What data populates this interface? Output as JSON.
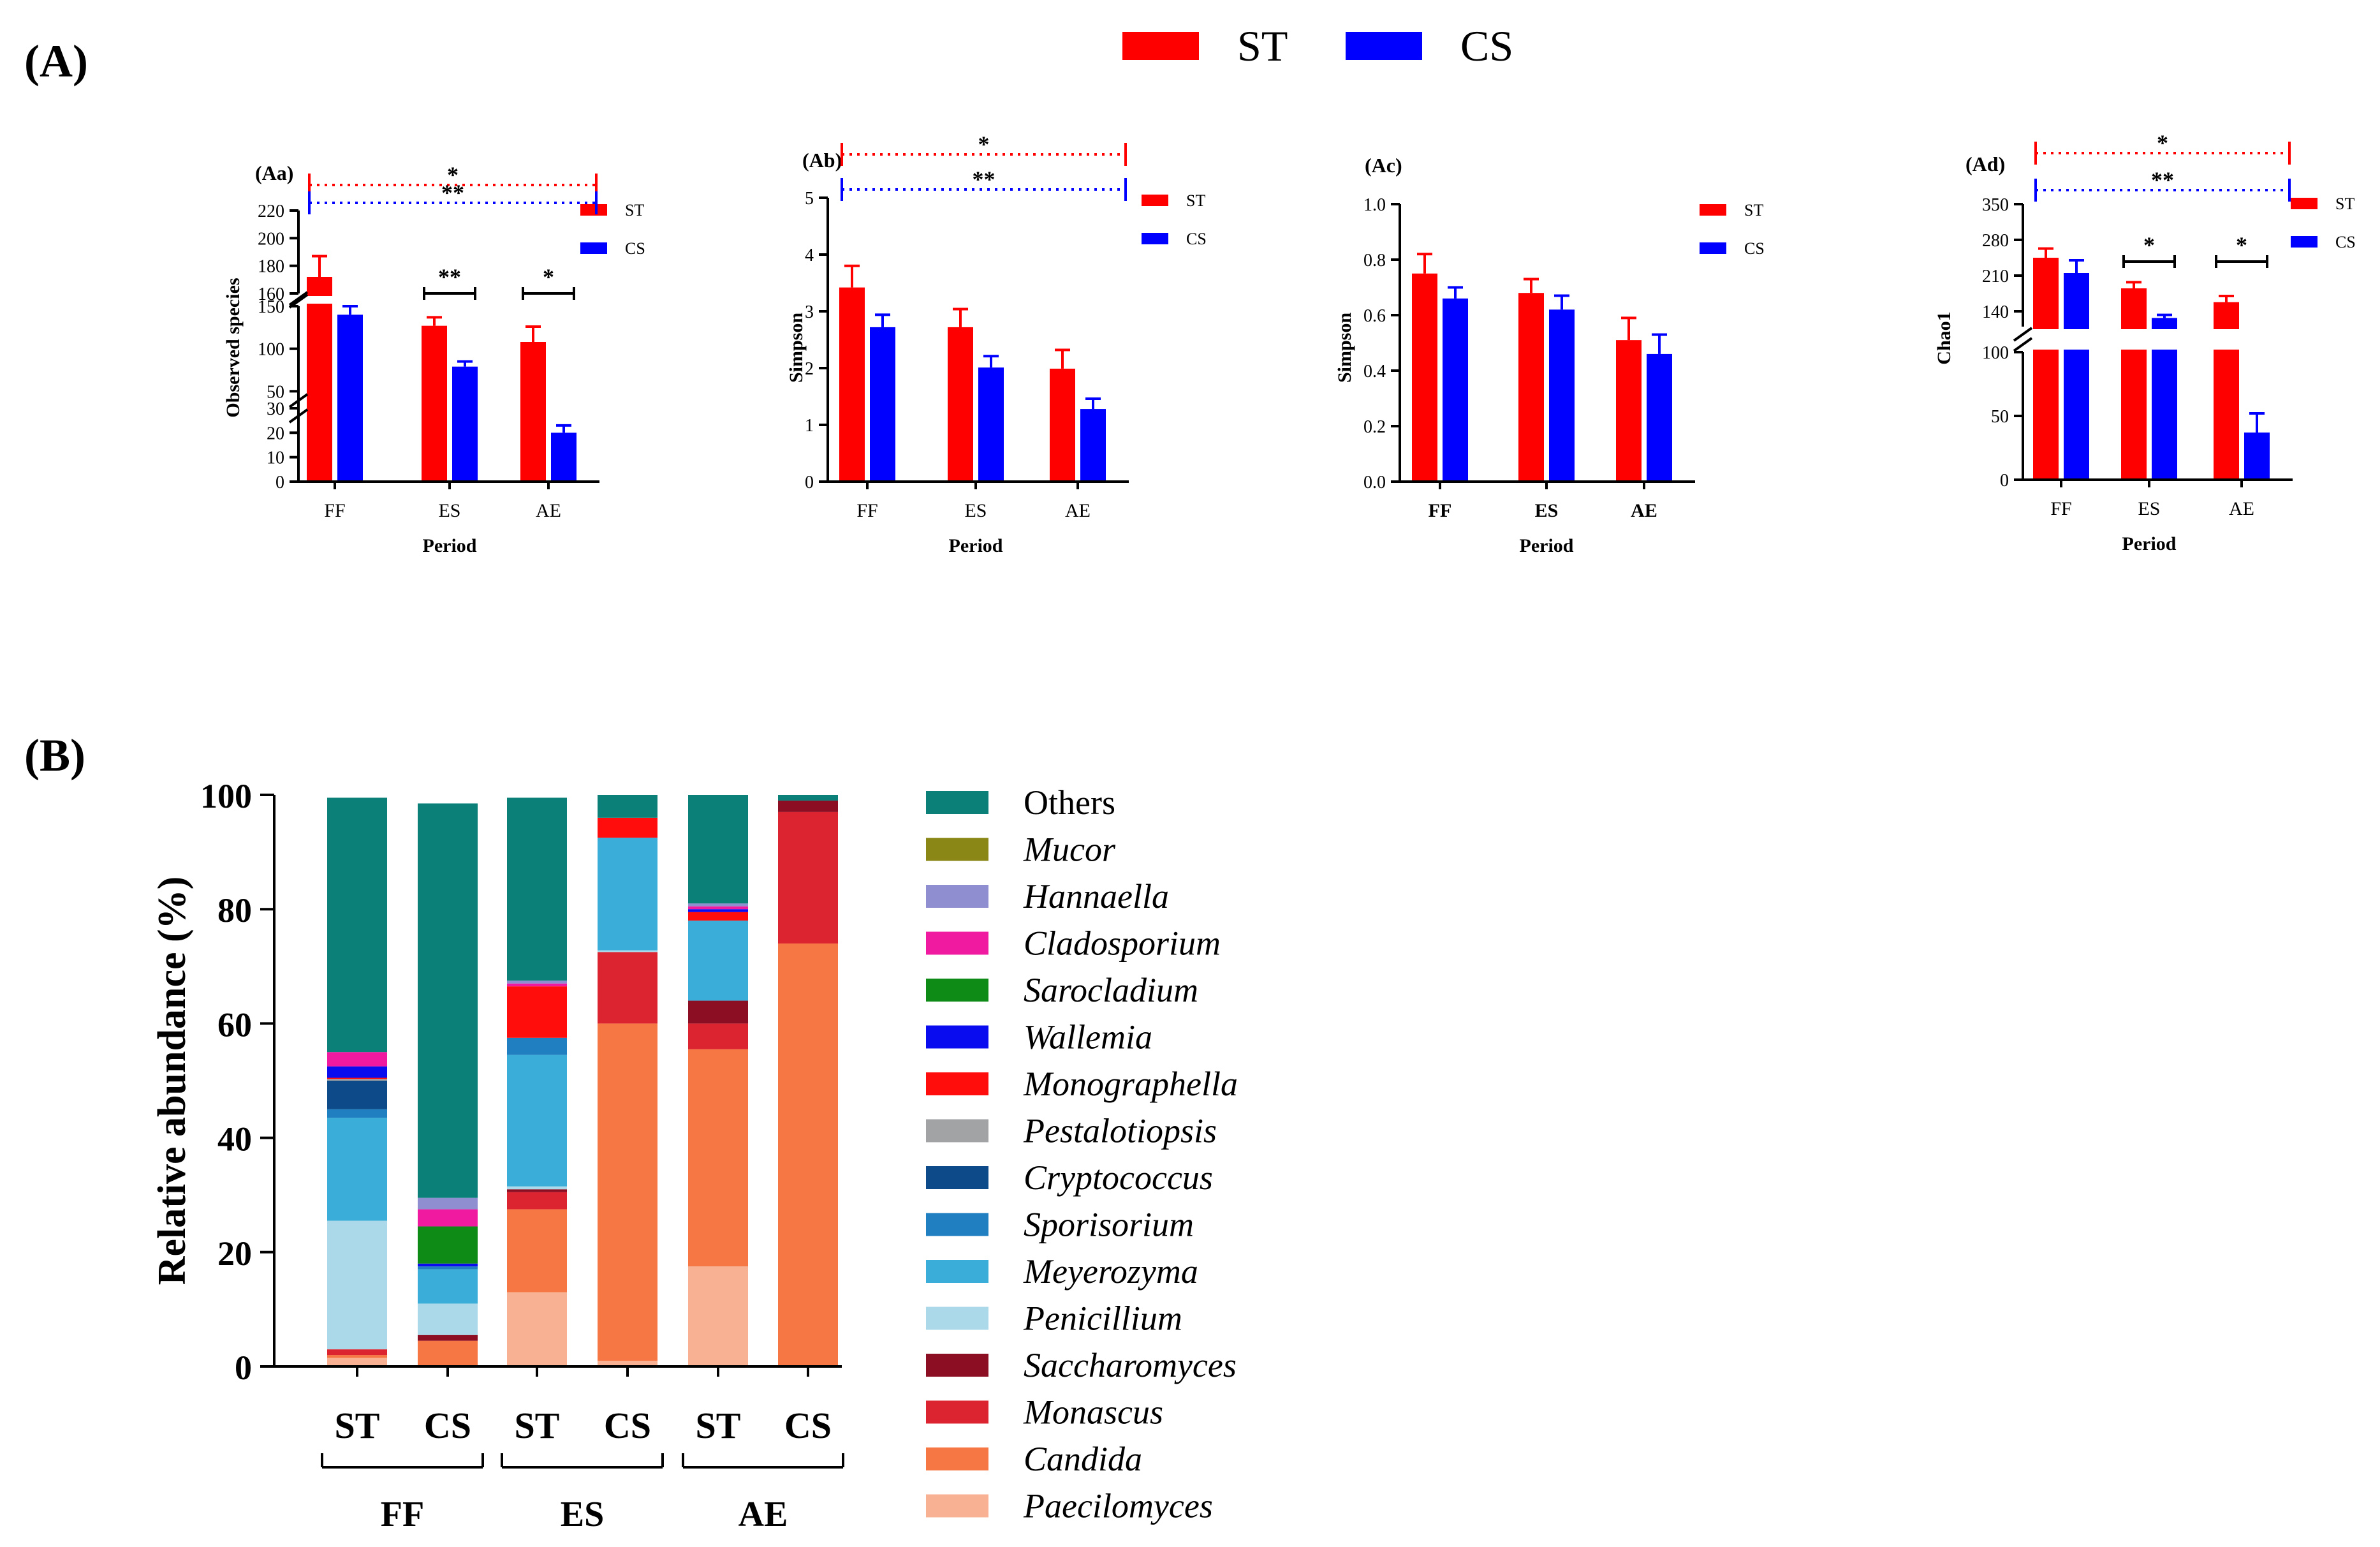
{
  "panel_labels": {
    "A": "(A)",
    "B": "(B)"
  },
  "legend": [
    {
      "name": "ST",
      "color": "#ff0000"
    },
    {
      "name": "CS",
      "color": "#0000ff"
    }
  ],
  "colors": {
    "ST": "#ff0000",
    "CS": "#0000ff"
  },
  "chart_data": [
    {
      "id": "Aa",
      "type": "bar",
      "label": "(Aa)",
      "ylabel": "Observed species",
      "xlabel": "Period",
      "categories": [
        "FF",
        "ES",
        "AE"
      ],
      "broken_axis": [
        [
          0,
          30
        ],
        [
          30,
          150
        ],
        [
          160,
          220
        ]
      ],
      "ticks": [
        0,
        10,
        20,
        30,
        50,
        100,
        150,
        160,
        180,
        200,
        220
      ],
      "series": [
        {
          "name": "ST",
          "values": [
            172,
            127,
            108
          ],
          "errors": [
            15,
            10,
            18
          ]
        },
        {
          "name": "CS",
          "values": [
            140,
            79,
            20
          ],
          "errors": [
            10,
            6,
            3
          ]
        }
      ],
      "significance": [
        {
          "text": "*",
          "scope": "ST",
          "from": 0,
          "to": 2
        },
        {
          "text": "**",
          "scope": "CS",
          "from": 0,
          "to": 2
        },
        {
          "text": "**",
          "scope": "pair",
          "at": 1
        },
        {
          "text": "*",
          "scope": "pair",
          "at": 2
        }
      ],
      "legend": [
        "ST",
        "CS"
      ]
    },
    {
      "id": "Ab",
      "type": "bar",
      "label": "(Ab)",
      "ylabel": "Simpson",
      "xlabel": "Period",
      "categories": [
        "FF",
        "ES",
        "AE"
      ],
      "ylim": [
        0,
        5
      ],
      "ticks": [
        0,
        1,
        2,
        3,
        4,
        5
      ],
      "series": [
        {
          "name": "ST",
          "values": [
            3.42,
            2.72,
            1.99
          ],
          "errors": [
            0.38,
            0.32,
            0.33
          ]
        },
        {
          "name": "CS",
          "values": [
            2.72,
            2.01,
            1.28
          ],
          "errors": [
            0.22,
            0.2,
            0.18
          ]
        }
      ],
      "significance": [
        {
          "text": "*",
          "scope": "ST",
          "from": 0,
          "to": 2
        },
        {
          "text": "**",
          "scope": "CS",
          "from": 0,
          "to": 2
        }
      ],
      "legend": [
        "ST",
        "CS"
      ]
    },
    {
      "id": "Ac",
      "type": "bar",
      "label": "(Ac)",
      "ylabel": "Simpson",
      "xlabel": "Period",
      "categories": [
        "FF",
        "ES",
        "AE"
      ],
      "ylim": [
        0,
        1.0
      ],
      "ticks": [
        0,
        0.2,
        0.4,
        0.6,
        0.8,
        1.0
      ],
      "tick_labels": [
        "0.0",
        "0.2",
        "0.4",
        "0.6",
        "0.8",
        "1.0"
      ],
      "series": [
        {
          "name": "ST",
          "values": [
            0.75,
            0.68,
            0.51
          ],
          "errors": [
            0.07,
            0.05,
            0.08
          ]
        },
        {
          "name": "CS",
          "values": [
            0.66,
            0.62,
            0.46
          ],
          "errors": [
            0.04,
            0.05,
            0.07
          ]
        }
      ],
      "significance": [],
      "legend": [
        "ST",
        "CS"
      ]
    },
    {
      "id": "Ad",
      "type": "bar",
      "label": "(Ad)",
      "ylabel": "Chao1",
      "xlabel": "Period",
      "categories": [
        "FF",
        "ES",
        "AE"
      ],
      "broken_axis": [
        [
          0,
          100
        ],
        [
          110,
          350
        ]
      ],
      "ticks": [
        0,
        50,
        100,
        140,
        210,
        280,
        350
      ],
      "series": [
        {
          "name": "ST",
          "values": [
            245,
            185,
            158
          ],
          "errors": [
            18,
            12,
            12
          ]
        },
        {
          "name": "CS",
          "values": [
            215,
            127,
            37
          ],
          "errors": [
            25,
            6,
            15
          ]
        }
      ],
      "significance": [
        {
          "text": "*",
          "scope": "ST",
          "from": 0,
          "to": 2
        },
        {
          "text": "**",
          "scope": "CS",
          "from": 0,
          "to": 2
        },
        {
          "text": "*",
          "scope": "pair",
          "at": 1
        },
        {
          "text": "*",
          "scope": "pair",
          "at": 2
        }
      ],
      "legend": [
        "ST",
        "CS"
      ]
    },
    {
      "id": "B",
      "type": "bar",
      "stacked": true,
      "ylabel": "Relative abundance (%)",
      "ylim": [
        0,
        100
      ],
      "ticks": [
        0,
        20,
        40,
        60,
        80,
        100
      ],
      "categories": [
        "ST",
        "CS",
        "ST",
        "CS",
        "ST",
        "CS"
      ],
      "groups": [
        {
          "name": "FF",
          "from": 0,
          "to": 1
        },
        {
          "name": "ES",
          "from": 2,
          "to": 3
        },
        {
          "name": "AE",
          "from": 4,
          "to": 5
        }
      ],
      "series": [
        {
          "name": "Paecilomyces",
          "color": "#f9b193",
          "values": [
            1.5,
            0,
            13,
            1,
            17.5,
            0
          ]
        },
        {
          "name": "Candida",
          "color": "#f67744",
          "values": [
            0.5,
            4.5,
            14.5,
            59,
            38,
            74
          ]
        },
        {
          "name": "Monascus",
          "color": "#dc2430",
          "values": [
            1,
            0,
            3,
            12.5,
            4.5,
            23
          ]
        },
        {
          "name": "Saccharomyces",
          "color": "#8b0e23",
          "values": [
            0,
            1,
            0.5,
            0,
            4,
            2
          ]
        },
        {
          "name": "Penicillium",
          "color": "#abd9e9",
          "values": [
            22.5,
            5.5,
            0.5,
            0.3,
            0,
            0
          ]
        },
        {
          "name": "Meyerozyma",
          "color": "#3aaed8",
          "values": [
            18,
            6,
            23,
            19.7,
            14,
            0
          ]
        },
        {
          "name": "Sporisorium",
          "color": "#1f7fc1",
          "values": [
            1.5,
            0.5,
            3,
            0,
            0,
            0
          ]
        },
        {
          "name": "Cryptococcus",
          "color": "#0c4a89",
          "values": [
            5,
            0,
            0,
            0,
            0,
            0
          ]
        },
        {
          "name": "Pestalotiopsis",
          "color": "#a2a3a5",
          "values": [
            0.3,
            0,
            0,
            0,
            0,
            0
          ]
        },
        {
          "name": "Monographella",
          "color": "#ff0d0d",
          "values": [
            0.2,
            0,
            9,
            3.5,
            1.5,
            0
          ]
        },
        {
          "name": "Wallemia",
          "color": "#0a0cf0",
          "values": [
            2,
            0.5,
            0,
            0,
            0.5,
            0
          ]
        },
        {
          "name": "Sarocladium",
          "color": "#0e8a17",
          "values": [
            0,
            6.5,
            0,
            0,
            0,
            0
          ]
        },
        {
          "name": "Cladosporium",
          "color": "#f01aa1",
          "values": [
            2.5,
            3,
            0.5,
            0,
            0.5,
            0
          ]
        },
        {
          "name": "Hannaella",
          "color": "#8f8ed0",
          "values": [
            0,
            2,
            0.5,
            0,
            0.5,
            0
          ]
        },
        {
          "name": "Mucor",
          "color": "#8a8716",
          "values": [
            0,
            0,
            0,
            0,
            0,
            0
          ]
        },
        {
          "name": "Others",
          "color": "#0a8079",
          "values": [
            44.5,
            69,
            32,
            4,
            19,
            1
          ]
        }
      ],
      "legend_order": [
        "Others",
        "Mucor",
        "Hannaella",
        "Cladosporium",
        "Sarocladium",
        "Wallemia",
        "Monographella",
        "Pestalotiopsis",
        "Cryptococcus",
        "Sporisorium",
        "Meyerozyma",
        "Penicillium",
        "Saccharomyces",
        "Monascus",
        "Candida",
        "Paecilomyces"
      ]
    }
  ]
}
